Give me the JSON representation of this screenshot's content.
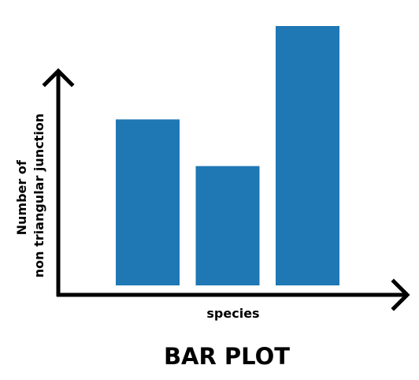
{
  "chart_data": {
    "type": "bar",
    "title": "BAR PLOT",
    "xlabel": "species",
    "ylabel_lines": [
      "Number of",
      "non triangular junction"
    ],
    "categories": [
      "",
      "",
      ""
    ],
    "values": [
      64,
      46,
      100
    ],
    "ylim": [
      0,
      100
    ],
    "bar_color": "#1f77b4",
    "axis_color": "#000000",
    "grid": false,
    "ticks_shown": false
  }
}
